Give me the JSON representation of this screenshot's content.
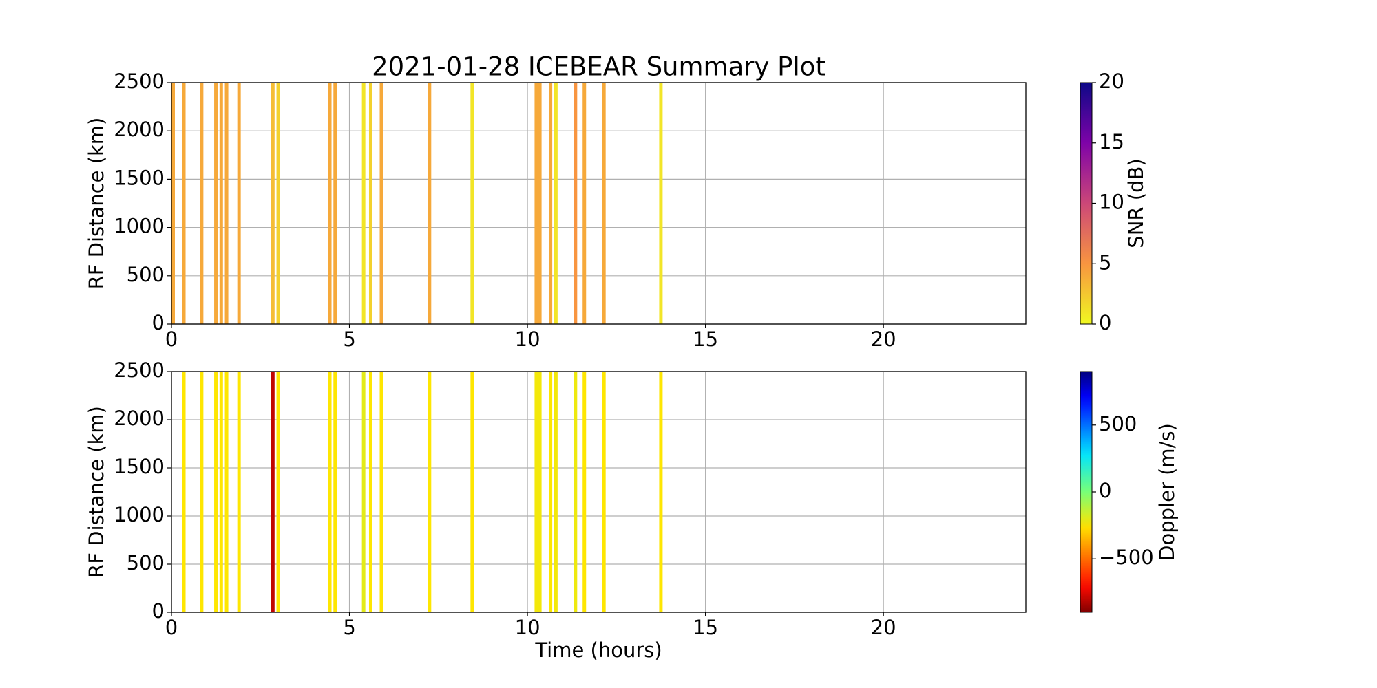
{
  "chart_data": [
    {
      "type": "strip",
      "title": "2021-01-28 ICEBEAR Summary Plot",
      "y_label": "RF Distance (km)",
      "x": [
        0.0,
        0.3,
        0.8,
        1.2,
        1.35,
        1.5,
        1.85,
        2.8,
        2.95,
        4.4,
        4.55,
        5.35,
        5.55,
        5.85,
        7.2,
        8.4,
        10.2,
        10.3,
        10.6,
        10.75,
        11.3,
        11.55,
        12.1,
        13.7
      ],
      "values": [
        4,
        4,
        4,
        4,
        4,
        4,
        4,
        3,
        2,
        4,
        4,
        1,
        2,
        4,
        4,
        1,
        4,
        4,
        4,
        1,
        5,
        4,
        4,
        1
      ],
      "xlim": [
        0,
        24
      ],
      "xticks": [
        0,
        5,
        10,
        15,
        20
      ],
      "ylim": [
        0,
        2500
      ],
      "yticks": [
        0,
        500,
        1000,
        1500,
        2000,
        2500
      ],
      "grid": true,
      "colormap": "plasma_r",
      "colorbar_label": "SNR (dB)",
      "clim": [
        0,
        20
      ],
      "cticks": [
        0,
        5,
        10,
        15,
        20
      ]
    },
    {
      "type": "strip",
      "y_label": "RF Distance (km)",
      "x_label": "Time (hours)",
      "x": [
        0.3,
        0.8,
        1.2,
        1.35,
        1.5,
        1.85,
        2.8,
        2.95,
        4.4,
        4.55,
        5.35,
        5.55,
        5.85,
        7.2,
        8.4,
        10.2,
        10.3,
        10.6,
        10.75,
        11.3,
        11.55,
        12.1,
        13.7
      ],
      "values": [
        -250,
        -250,
        -250,
        -250,
        -250,
        -250,
        -800,
        -250,
        -250,
        -250,
        -200,
        -250,
        -250,
        -250,
        -250,
        -230,
        -230,
        -250,
        -230,
        -220,
        -250,
        -250,
        -250
      ],
      "xlim": [
        0,
        24
      ],
      "xticks": [
        0,
        5,
        10,
        15,
        20
      ],
      "ylim": [
        0,
        2500
      ],
      "yticks": [
        0,
        500,
        1000,
        1500,
        2000,
        2500
      ],
      "grid": true,
      "colormap": "jet_r",
      "colorbar_label": "Doppler (m/s)",
      "clim": [
        -900,
        900
      ],
      "cticks": [
        {
          "value": -500,
          "label": "−500"
        },
        0,
        500
      ]
    }
  ]
}
